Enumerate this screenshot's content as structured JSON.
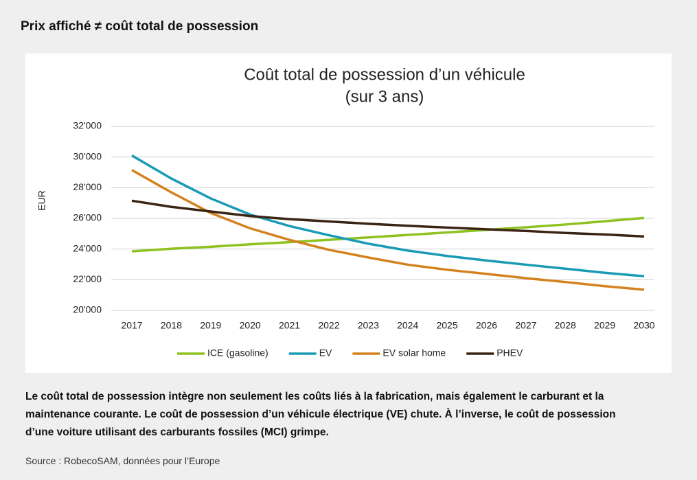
{
  "header": {
    "title": "Prix affiché ≠ coût total de possession"
  },
  "chart_data": {
    "type": "line",
    "title": "Coût total de possession d’un véhicule",
    "subtitle": "(sur 3 ans)",
    "y_label": "EUR",
    "categories": [
      "2017",
      "2018",
      "2019",
      "2020",
      "2021",
      "2022",
      "2023",
      "2024",
      "2025",
      "2026",
      "2027",
      "2028",
      "2029",
      "2030"
    ],
    "series": [
      {
        "name": "ICE (gasoline)",
        "color": "#8dc21f",
        "values": [
          23850,
          24020,
          24150,
          24310,
          24450,
          24600,
          24760,
          24920,
          25080,
          25250,
          25420,
          25600,
          25810,
          26030
        ]
      },
      {
        "name": "EV",
        "color": "#1a9bb5",
        "values": [
          30100,
          28600,
          27300,
          26250,
          25500,
          24900,
          24350,
          23900,
          23550,
          23250,
          22980,
          22720,
          22450,
          22230
        ]
      },
      {
        "name": "EV solar home",
        "color": "#d4821f",
        "values": [
          29150,
          27700,
          26350,
          25350,
          24600,
          23950,
          23450,
          22980,
          22650,
          22380,
          22100,
          21850,
          21580,
          21350
        ]
      },
      {
        "name": "PHEV",
        "color": "#3b2414",
        "values": [
          27150,
          26750,
          26450,
          26150,
          25950,
          25800,
          25650,
          25520,
          25400,
          25290,
          25180,
          25050,
          24950,
          24820
        ]
      }
    ],
    "ylim": [
      20000,
      32000
    ],
    "yticks": [
      {
        "value": 20000,
        "label": "20'000"
      },
      {
        "value": 22000,
        "label": "22'000"
      },
      {
        "value": 24000,
        "label": "24'000"
      },
      {
        "value": 26000,
        "label": "26'000"
      },
      {
        "value": 28000,
        "label": "28'000"
      },
      {
        "value": 30000,
        "label": "30'000"
      },
      {
        "value": 32000,
        "label": "32'000"
      }
    ],
    "grid": true,
    "legend": "bottom"
  },
  "description": "Le coût total de possession intègre non seulement les coûts liés à la fabrication, mais également le carburant et la maintenance courante. Le coût de possession d’un véhicule électrique (VE) chute. À l’inverse, le coût de possession d’une voiture utilisant des carburants fossiles (MCI) grimpe.",
  "source": "Source : RobecoSAM, données pour l’Europe"
}
